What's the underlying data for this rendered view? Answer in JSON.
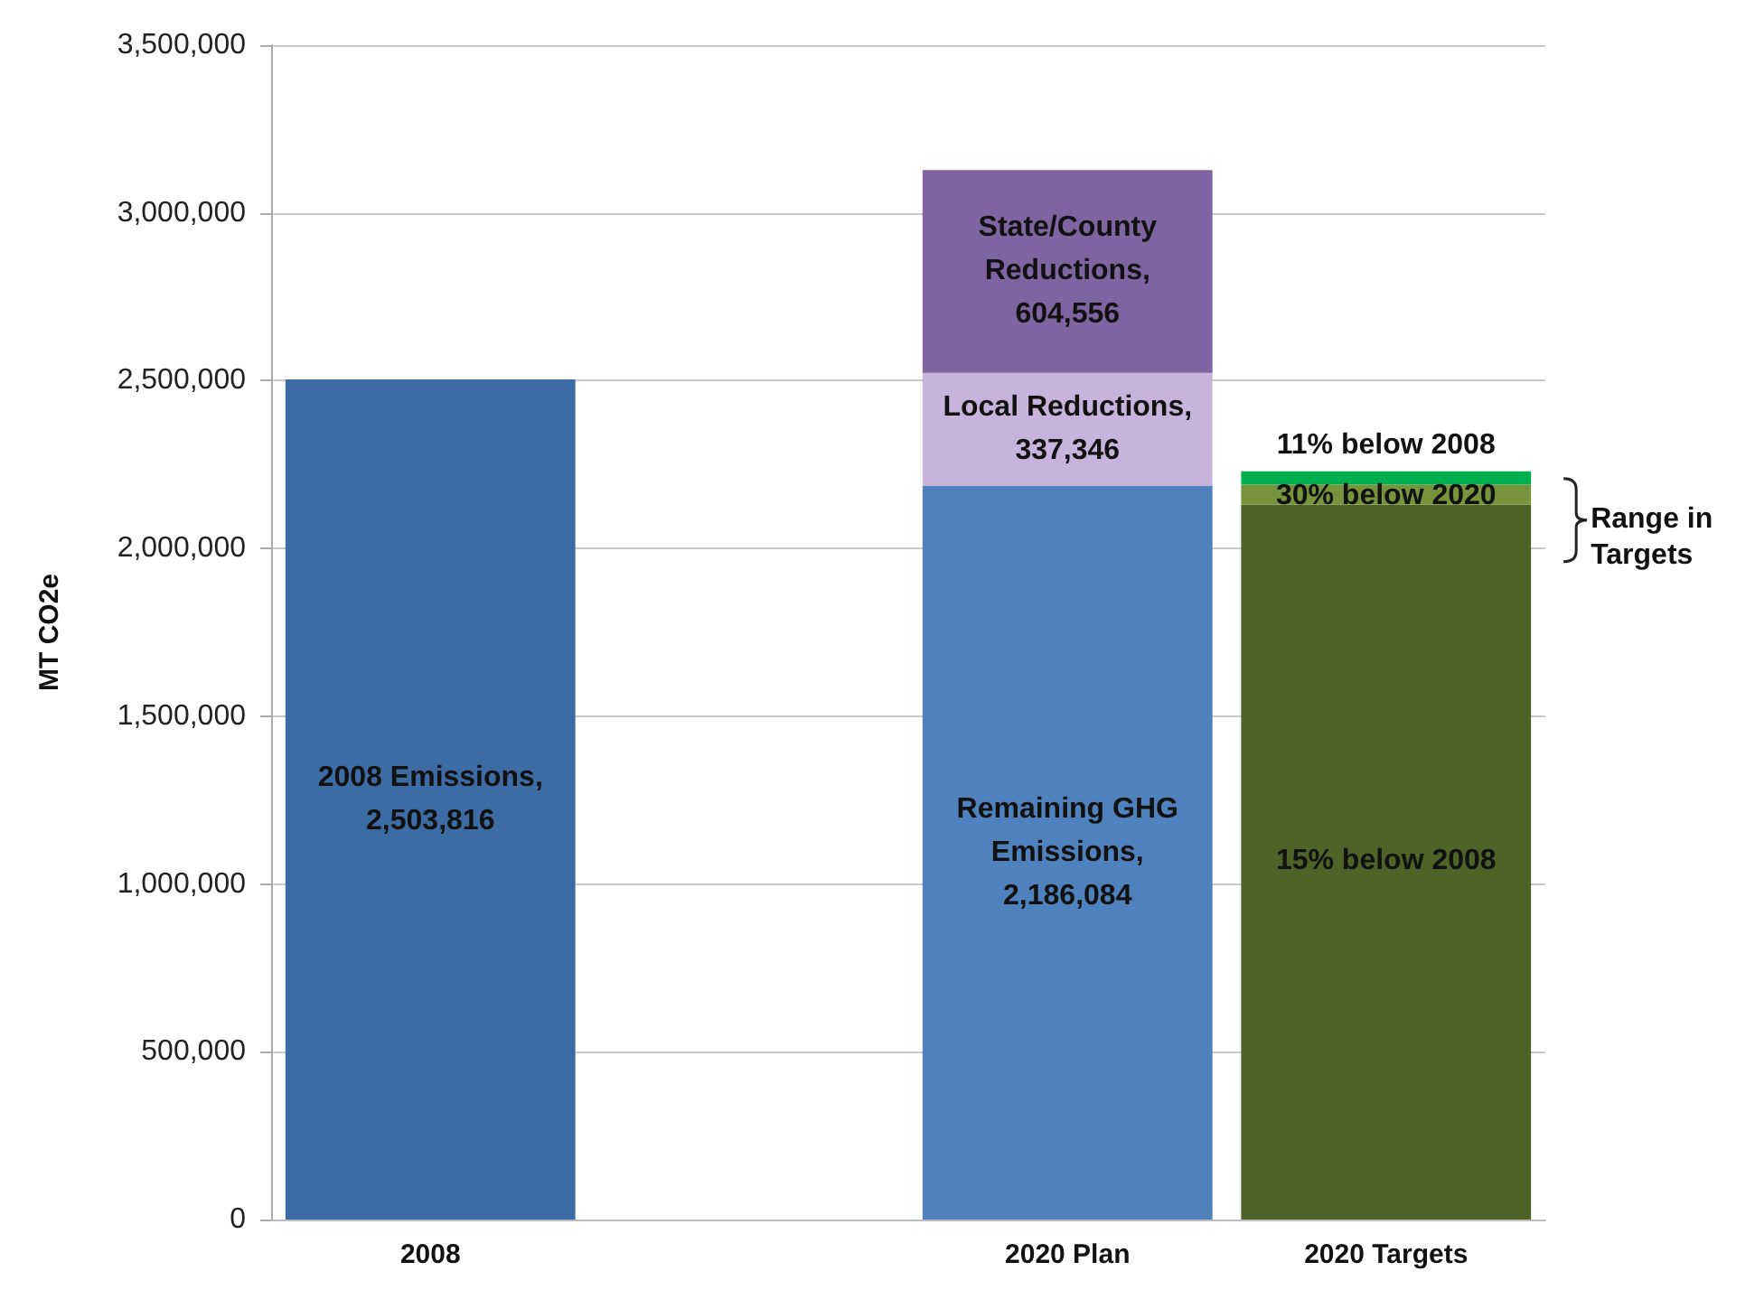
{
  "chart_data": {
    "type": "bar",
    "stacked": true,
    "ylabel": "MT CO2e",
    "categories": [
      "2008",
      null,
      "2020 Plan",
      "2020 Targets"
    ],
    "series": [
      {
        "values": [
          2503816,
          null,
          2186084,
          2130000
        ],
        "colors": [
          "#3d6ca5",
          "#3d6ca5",
          "#4f81bd",
          "#4f6228"
        ],
        "value_labels": [
          "2008 Emissions, 2,503,816",
          null,
          "Remaining GHG Emissions, 2,186,084",
          null
        ]
      },
      {
        "values": [
          null,
          null,
          337346,
          60000
        ],
        "colors": [
          "#c7b3dc",
          "#c7b3dc",
          "#c7b3dc",
          "#77933c"
        ],
        "value_labels": [
          null,
          null,
          "Local Reductions, 337,346",
          null
        ]
      },
      {
        "values": [
          null,
          null,
          604556,
          40000
        ],
        "colors": [
          "#8064a2",
          "#8064a2",
          "#8064a2",
          "#00b050"
        ],
        "value_labels": [
          null,
          null,
          "State/County Reductions, 604,556",
          null
        ]
      }
    ],
    "annotations": [
      "15% below 2008",
      {
        "text": "30% below 2020",
        "x": "2020 Targets",
        "y": 2190000
      },
      {
        "text": "11% below 2008",
        "x": "2020 Targets",
        "y": 2230000
      },
      "Range in Targets"
    ],
    "ylim": [
      0,
      3500000
    ],
    "yticks": [
      0,
      {
        "value": 500000,
        "label": "500,000"
      },
      {
        "value": 1000000,
        "label": "1,000,000"
      },
      {
        "value": 1500000,
        "label": "1,500,000"
      },
      {
        "value": 2000000,
        "label": "2,000,000"
      },
      {
        "value": 2500000,
        "label": "2,500,000"
      },
      {
        "value": 3000000,
        "label": "3,000,000"
      },
      {
        "value": 3500000,
        "label": "3,500,000"
      }
    ],
    "grid": "y"
  }
}
